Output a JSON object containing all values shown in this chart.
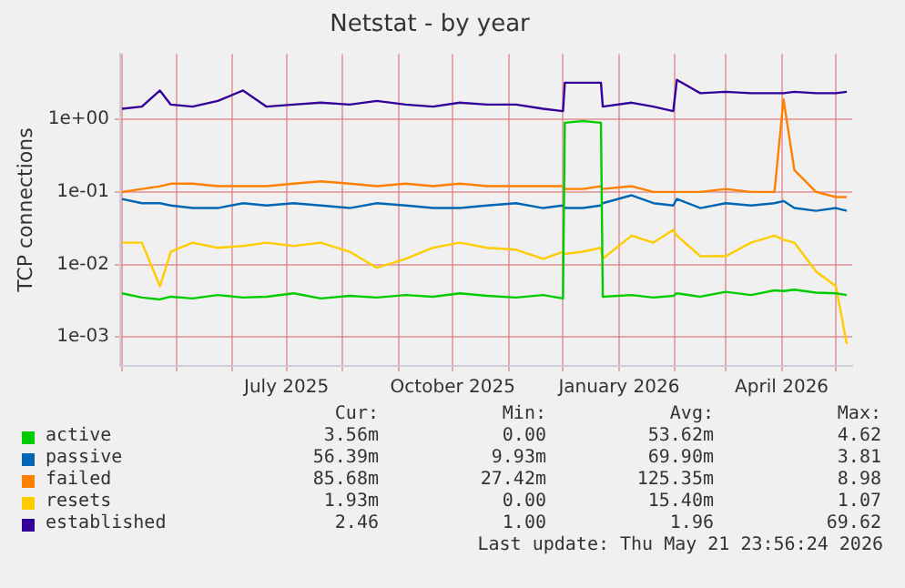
{
  "chart_data": {
    "type": "line",
    "title": "Netstat - by year",
    "ylabel": "TCP connections",
    "log": true,
    "grid": true,
    "legend": "bottom",
    "marker": "none",
    "line_style": "solid",
    "x": [
      "2025-04-01",
      "2025-04-12",
      "2025-04-22",
      "2025-04-28",
      "2025-05-10",
      "2025-05-24",
      "2025-06-07",
      "2025-06-20",
      "2025-07-05",
      "2025-07-20",
      "2025-08-05",
      "2025-08-20",
      "2025-09-05",
      "2025-09-20",
      "2025-10-05",
      "2025-10-20",
      "2025-11-05",
      "2025-11-20",
      "2025-12-01",
      "2025-12-02",
      "2025-12-12",
      "2025-12-22",
      "2025-12-23",
      "2026-01-08",
      "2026-01-20",
      "2026-01-31",
      "2026-02-02",
      "2026-02-15",
      "2026-03-01",
      "2026-03-15",
      "2026-03-28",
      "2026-04-02",
      "2026-04-08",
      "2026-04-20",
      "2026-05-01",
      "2026-05-07"
    ],
    "xlim": [
      "2025-03-31",
      "2026-05-10"
    ],
    "xticks": [
      {
        "value": "2025-04-01",
        "label": null
      },
      {
        "value": "2025-05-01",
        "label": null
      },
      {
        "value": "2025-06-01",
        "label": null
      },
      {
        "value": "2025-07-01",
        "label": "July 2025"
      },
      {
        "value": "2025-08-01",
        "label": null
      },
      {
        "value": "2025-09-01",
        "label": null
      },
      {
        "value": "2025-10-01",
        "label": "October 2025"
      },
      {
        "value": "2025-11-01",
        "label": null
      },
      {
        "value": "2025-12-01",
        "label": null
      },
      {
        "value": "2026-01-01",
        "label": "January 2026"
      },
      {
        "value": "2026-02-01",
        "label": null
      },
      {
        "value": "2026-03-01",
        "label": null
      },
      {
        "value": "2026-04-01",
        "label": "April 2026"
      },
      {
        "value": "2026-05-01",
        "label": null
      }
    ],
    "ylim": [
      0.0004,
      8
    ],
    "yticks": [
      {
        "value": 0.001,
        "label": "1e-03"
      },
      {
        "value": 0.01,
        "label": "1e-02"
      },
      {
        "value": 0.1,
        "label": "1e-01"
      },
      {
        "value": 1,
        "label": "1e+00"
      }
    ],
    "series": [
      {
        "name": "active",
        "color": "#00cc00",
        "values": [
          0.004,
          0.0035,
          0.0033,
          0.0036,
          0.0034,
          0.0038,
          0.0035,
          0.0036,
          0.004,
          0.0034,
          0.0037,
          0.0035,
          0.0038,
          0.0036,
          0.004,
          0.0037,
          0.0035,
          0.0038,
          0.0034,
          0.9,
          0.95,
          0.9,
          0.0036,
          0.0038,
          0.0035,
          0.0037,
          0.004,
          0.0036,
          0.0042,
          0.0038,
          0.0044,
          0.0043,
          0.0045,
          0.0041,
          0.004,
          0.0038
        ]
      },
      {
        "name": "passive",
        "color": "#0066b3",
        "values": [
          0.08,
          0.07,
          0.07,
          0.065,
          0.06,
          0.06,
          0.07,
          0.065,
          0.07,
          0.065,
          0.06,
          0.07,
          0.065,
          0.06,
          0.06,
          0.065,
          0.07,
          0.06,
          0.065,
          0.06,
          0.06,
          0.065,
          0.07,
          0.09,
          0.07,
          0.065,
          0.08,
          0.06,
          0.07,
          0.065,
          0.07,
          0.075,
          0.06,
          0.055,
          0.06,
          0.055
        ]
      },
      {
        "name": "failed",
        "color": "#ff8000",
        "values": [
          0.1,
          0.11,
          0.12,
          0.13,
          0.13,
          0.12,
          0.12,
          0.12,
          0.13,
          0.14,
          0.13,
          0.12,
          0.13,
          0.12,
          0.13,
          0.12,
          0.12,
          0.12,
          0.12,
          0.11,
          0.11,
          0.12,
          0.11,
          0.12,
          0.1,
          0.1,
          0.1,
          0.1,
          0.11,
          0.1,
          0.1,
          1.9,
          0.2,
          0.1,
          0.085,
          0.085
        ]
      },
      {
        "name": "resets",
        "color": "#ffcc00",
        "values": [
          0.02,
          0.02,
          0.005,
          0.015,
          0.02,
          0.017,
          0.018,
          0.02,
          0.018,
          0.02,
          0.015,
          0.009,
          0.012,
          0.017,
          0.02,
          0.017,
          0.016,
          0.012,
          0.015,
          0.014,
          0.015,
          0.017,
          0.012,
          0.025,
          0.02,
          0.03,
          0.025,
          0.013,
          0.013,
          0.02,
          0.025,
          0.022,
          0.02,
          0.008,
          0.005,
          0.0008
        ]
      },
      {
        "name": "established",
        "color": "#330099",
        "values": [
          1.4,
          1.5,
          2.5,
          1.6,
          1.5,
          1.8,
          2.5,
          1.5,
          1.6,
          1.7,
          1.6,
          1.8,
          1.6,
          1.5,
          1.7,
          1.6,
          1.6,
          1.4,
          1.3,
          3.2,
          3.2,
          3.2,
          1.5,
          1.7,
          1.5,
          1.3,
          3.5,
          2.3,
          2.4,
          2.3,
          2.3,
          2.3,
          2.4,
          2.3,
          2.3,
          2.4
        ]
      }
    ],
    "annotations": [
      "Cur:",
      "Min:",
      "Avg:",
      "Max:",
      "3.56m",
      "0.00",
      "53.62m",
      "4.62",
      "56.39m",
      "9.93m",
      "69.90m",
      "3.81",
      "85.68m",
      "27.42m",
      "125.35m",
      "8.98",
      "1.93m",
      "0.00",
      "15.40m",
      "1.07",
      "2.46",
      "1.00",
      "1.96",
      "69.62",
      "Last update: Thu May 21 23:56:24 2026"
    ]
  }
}
